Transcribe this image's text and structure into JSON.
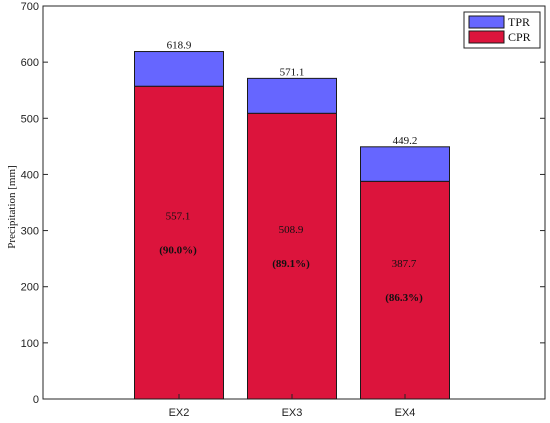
{
  "chart_data": {
    "type": "bar",
    "stacked": true,
    "categories": [
      "EX2",
      "EX3",
      "EX4"
    ],
    "series": [
      {
        "name": "CPR",
        "color": "#DC143C",
        "values": [
          557.1,
          508.9,
          387.7
        ],
        "value_labels": [
          "557.1",
          "508.9",
          "387.7"
        ],
        "percent_labels": [
          "(90.0%)",
          "(89.1%)",
          "(86.3%)"
        ]
      },
      {
        "name": "TPR",
        "color": "#6666FF",
        "values": [
          61.8,
          62.2,
          61.5
        ]
      }
    ],
    "total_labels": [
      "618.9",
      "571.1",
      "449.2"
    ],
    "ylabel": "Precipitation [mm]",
    "xlabel": "",
    "title": "",
    "ylim": [
      0,
      700
    ],
    "y_ticks": [
      0,
      100,
      200,
      300,
      400,
      500,
      600,
      700
    ],
    "legend_position": "top-right",
    "grid": false
  }
}
